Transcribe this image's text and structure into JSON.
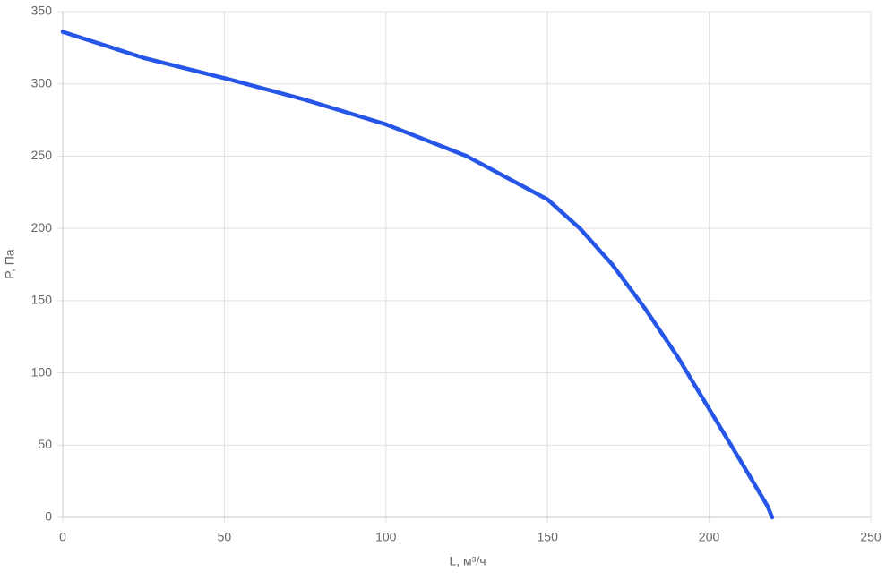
{
  "chart_data": {
    "type": "line",
    "x_label": "L, м³/ч",
    "y_label": "P, Па",
    "x": [
      0,
      25,
      50,
      75,
      100,
      125,
      140,
      150,
      160,
      170,
      180,
      190,
      200,
      210,
      218,
      219.5
    ],
    "series": [
      {
        "name": "P",
        "color": "#2656e8",
        "values": [
          336,
          318,
          304,
          289,
          272,
          250,
          232,
          220,
          200,
          175,
          145,
          112,
          75,
          38,
          8,
          0
        ]
      }
    ],
    "xlim": [
      0,
      250
    ],
    "xticks": [
      0,
      50,
      100,
      150,
      200,
      250
    ],
    "ylim": [
      0,
      350
    ],
    "yticks": [
      0,
      50,
      100,
      150,
      200,
      250,
      300,
      350
    ],
    "grid": true
  }
}
